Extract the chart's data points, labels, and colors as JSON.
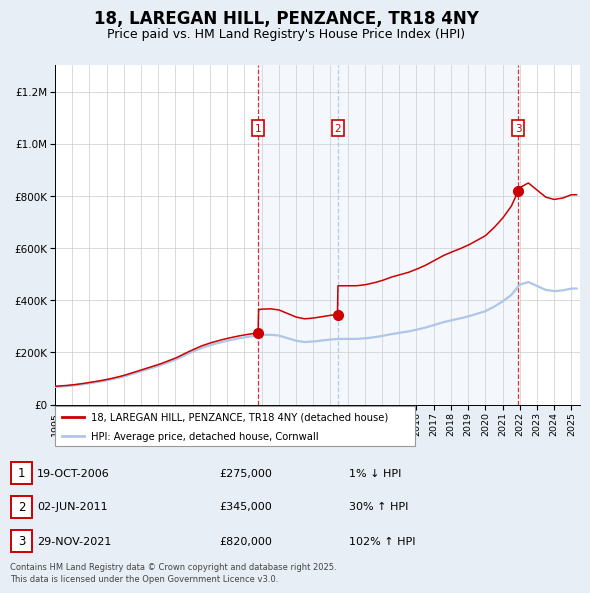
{
  "title": "18, LAREGAN HILL, PENZANCE, TR18 4NY",
  "subtitle": "Price paid vs. HM Land Registry's House Price Index (HPI)",
  "sale_dates": [
    2006.8,
    2011.42,
    2021.92
  ],
  "sale_prices": [
    275000,
    345000,
    820000
  ],
  "sale_labels": [
    "1",
    "2",
    "3"
  ],
  "sale_label_1": "19-OCT-2006",
  "sale_label_2": "02-JUN-2011",
  "sale_label_3": "29-NOV-2021",
  "sale_price_str_1": "£275,000",
  "sale_price_str_2": "£345,000",
  "sale_price_str_3": "£820,000",
  "sale_hpi_str_1": "1% ↓ HPI",
  "sale_hpi_str_2": "30% ↑ HPI",
  "sale_hpi_str_3": "102% ↑ HPI",
  "hpi_line_color": "#aec6e8",
  "price_line_color": "#cc0000",
  "sale_dot_color": "#cc0000",
  "legend_label_price": "18, LAREGAN HILL, PENZANCE, TR18 4NY (detached house)",
  "legend_label_hpi": "HPI: Average price, detached house, Cornwall",
  "footer": "Contains HM Land Registry data © Crown copyright and database right 2025.\nThis data is licensed under the Open Government Licence v3.0.",
  "ylim": [
    0,
    1300000
  ],
  "xlim_start": 1995,
  "xlim_end": 2025.5,
  "background_color": "#e8eef5",
  "plot_bg_color": "#ffffff",
  "years_hpi": [
    1995,
    1995.5,
    1996,
    1996.5,
    1997,
    1997.5,
    1998,
    1998.5,
    1999,
    1999.5,
    2000,
    2000.5,
    2001,
    2001.5,
    2002,
    2002.5,
    2003,
    2003.5,
    2004,
    2004.5,
    2005,
    2005.5,
    2006,
    2006.5,
    2007,
    2007.5,
    2008,
    2008.5,
    2009,
    2009.5,
    2010,
    2010.5,
    2011,
    2011.5,
    2012,
    2012.5,
    2013,
    2013.5,
    2014,
    2014.5,
    2015,
    2015.5,
    2016,
    2016.5,
    2017,
    2017.5,
    2018,
    2018.5,
    2019,
    2019.5,
    2020,
    2020.5,
    2021,
    2021.5,
    2022,
    2022.5,
    2023,
    2023.5,
    2024,
    2024.5,
    2025
  ],
  "hpi_vals": [
    68000,
    70000,
    73000,
    77000,
    82000,
    87000,
    93000,
    100000,
    108000,
    118000,
    128000,
    138000,
    148000,
    160000,
    172000,
    188000,
    203000,
    217000,
    228000,
    237000,
    245000,
    252000,
    258000,
    263000,
    267000,
    268000,
    265000,
    255000,
    245000,
    240000,
    242000,
    246000,
    250000,
    252000,
    252000,
    252000,
    254000,
    258000,
    263000,
    270000,
    275000,
    280000,
    287000,
    295000,
    305000,
    315000,
    323000,
    330000,
    338000,
    348000,
    358000,
    375000,
    395000,
    420000,
    460000,
    470000,
    455000,
    440000,
    435000,
    438000,
    445000
  ]
}
